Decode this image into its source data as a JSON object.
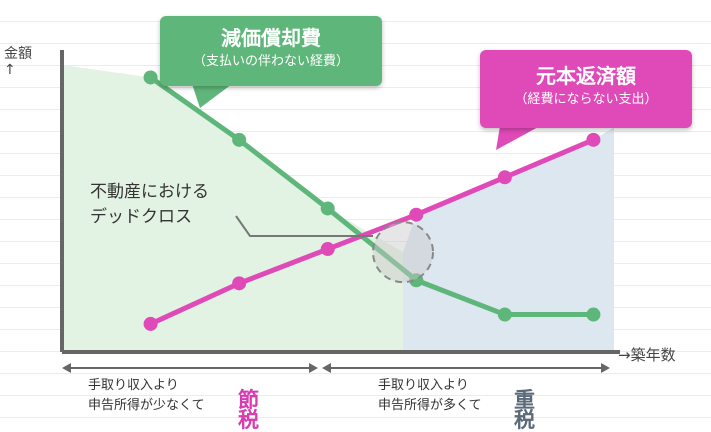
{
  "colors": {
    "green": "#5fb67a",
    "pink": "#e04ab8",
    "green_fill": "#e3f3e3",
    "blue_fill": "#dde7f0",
    "axis": "#666666",
    "gray_text": "#5a6a78"
  },
  "axis": {
    "y_label": "金額",
    "y_arrow": "↑",
    "x_label": "→築年数"
  },
  "callouts": {
    "depreciation": {
      "title": "減価償却費",
      "subtitle": "（支払いの伴わない経費）"
    },
    "principal": {
      "title": "元本返済額",
      "subtitle": "（経費にならない支出）"
    }
  },
  "cross_label": {
    "line1": "不動産における",
    "line2": "デッドクロス"
  },
  "zones": [
    {
      "line1": "手取り収入より",
      "line2": "申告所得が少なくて",
      "emphasis": "節税",
      "emphasis_color": "#d63bb0"
    },
    {
      "line1": "手取り収入より",
      "line2": "申告所得が多くて",
      "emphasis": "重税",
      "emphasis_color": "#5a6a78"
    }
  ],
  "chart_data": {
    "type": "line",
    "x": [
      1,
      2,
      3,
      4,
      5,
      6
    ],
    "xlim": [
      0,
      6.3
    ],
    "ylim": [
      0,
      10
    ],
    "series": [
      {
        "name": "減価償却費",
        "color": "#5fb67a",
        "values": [
          8.8,
          6.8,
          4.6,
          2.3,
          1.2,
          1.2
        ]
      },
      {
        "name": "元本返済額",
        "color": "#e04ab8",
        "values": [
          0.9,
          2.2,
          3.3,
          4.4,
          5.6,
          6.8
        ]
      }
    ],
    "cross_x": 3.85
  }
}
